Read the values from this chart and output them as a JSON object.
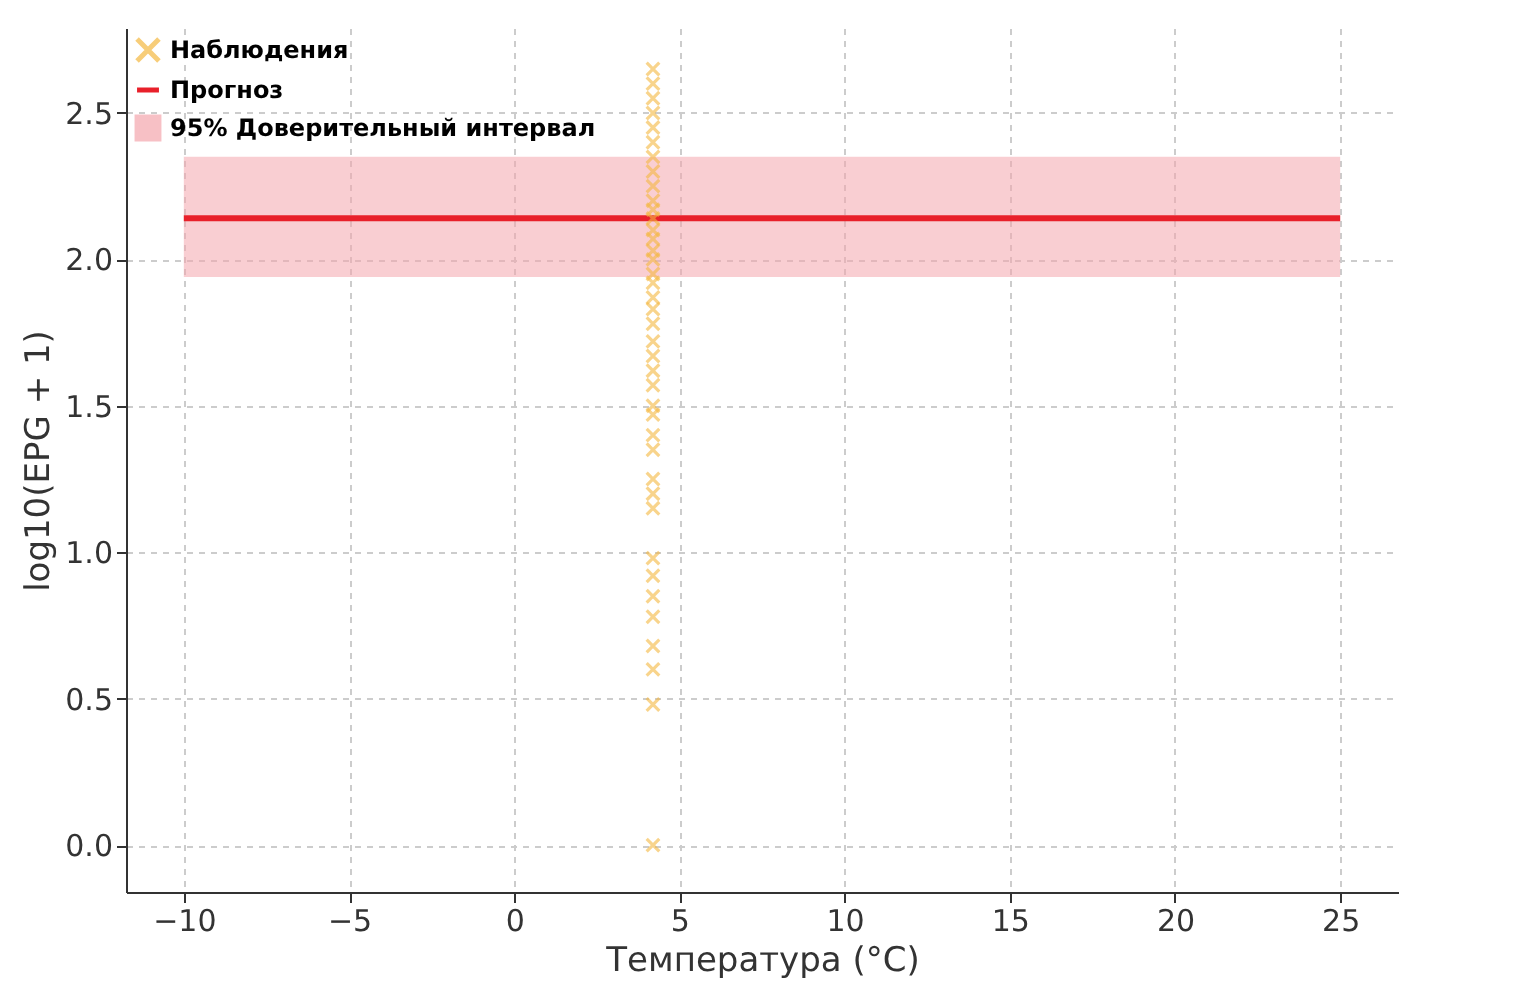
{
  "chart_data": {
    "type": "scatter",
    "xlabel": "Температура (°C)",
    "ylabel": "log10(EPG + 1)",
    "xlim": [
      -11.75,
      26.75
    ],
    "ylim": [
      -0.16,
      2.79
    ],
    "xticks": [
      -10,
      -5,
      0,
      5,
      10,
      15,
      20,
      25
    ],
    "yticks": [
      {
        "value": 0,
        "label": "0.0"
      },
      0.5,
      {
        "value": 1,
        "label": "1.0"
      },
      1.5,
      {
        "value": 2,
        "label": "2.0"
      },
      2.5
    ],
    "grid": true,
    "legend": "top left",
    "series": [
      {
        "name": "Наблюдения",
        "color": "#f5b841",
        "marker": "cross",
        "x": [
          4.2,
          4.2,
          4.2,
          4.2,
          4.2,
          4.2,
          4.2,
          4.2,
          4.2,
          4.2,
          4.2,
          4.2,
          4.2,
          4.2,
          4.2,
          4.2,
          4.2,
          4.2,
          4.2,
          4.2,
          4.2,
          4.2,
          4.2,
          4.2,
          4.2,
          4.2,
          4.2,
          4.2,
          4.2,
          4.2,
          4.2,
          4.2,
          4.2,
          4.2,
          4.2,
          4.2,
          4.2,
          4.2,
          4.2,
          4.2
        ],
        "values": [
          0.0,
          0.48,
          0.6,
          0.68,
          0.78,
          0.85,
          0.92,
          0.98,
          1.15,
          1.2,
          1.25,
          1.35,
          1.4,
          1.47,
          1.5,
          1.57,
          1.62,
          1.67,
          1.72,
          1.78,
          1.83,
          1.87,
          1.92,
          1.95,
          2.0,
          2.03,
          2.07,
          2.1,
          2.14,
          2.17,
          2.2,
          2.25,
          2.3,
          2.35,
          2.4,
          2.45,
          2.5,
          2.55,
          2.6,
          2.65
        ]
      },
      {
        "name": "Прогноз",
        "type": "line",
        "color": "#e8202a",
        "x": [
          -10,
          25
        ],
        "values": [
          2.14,
          2.14
        ]
      }
    ],
    "bands": [
      {
        "axis": "y",
        "from": 1.94,
        "to": 2.35,
        "label": "95% Доверительный интервал",
        "color": "#f4a6ad"
      }
    ]
  }
}
